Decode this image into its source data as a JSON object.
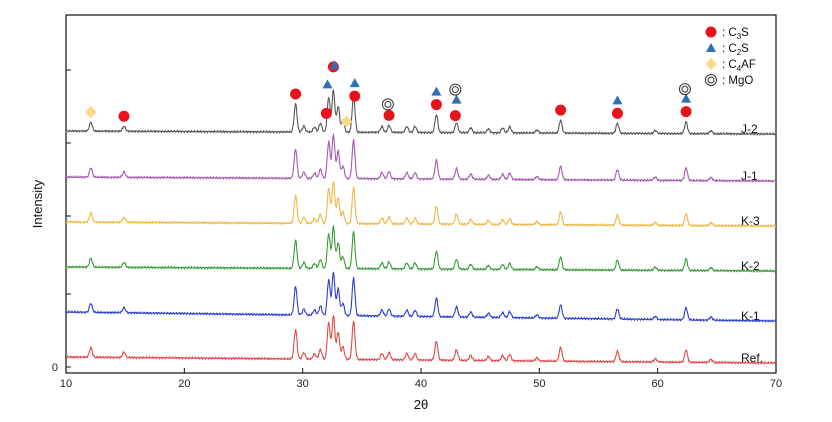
{
  "chart_data": {
    "type": "line",
    "title": "",
    "xlabel": "2θ",
    "ylabel": "Intensity",
    "xlim": [
      10,
      70
    ],
    "x_ticks": [
      "10",
      "20",
      "30",
      "40",
      "50",
      "60",
      "70"
    ],
    "y_ticks": [
      "0"
    ],
    "grid": false,
    "legend_position": "top-right",
    "legend": [
      {
        "marker": "circle",
        "color": "#e8141b",
        "prefix": ": C",
        "sub": "3",
        "suffix": "S"
      },
      {
        "marker": "triangle",
        "color": "#2f6fb5",
        "prefix": ": C",
        "sub": "2",
        "suffix": "S"
      },
      {
        "marker": "diamond",
        "color": "#fcd98a",
        "prefix": ": C",
        "sub": "4",
        "suffix": "AF"
      },
      {
        "marker": "double-circle",
        "color": "#333333",
        "prefix": ": MgO",
        "sub": "",
        "suffix": ""
      }
    ],
    "series": [
      {
        "name": "J-2",
        "color": "#555555"
      },
      {
        "name": "J-1",
        "color": "#a35aaf"
      },
      {
        "name": "K-3",
        "color": "#f2b541"
      },
      {
        "name": "K-2",
        "color": "#3a9a3a"
      },
      {
        "name": "K-1",
        "color": "#2b3fd0"
      },
      {
        "name": "Ref.",
        "color": "#e04848"
      }
    ],
    "phase_markers": [
      {
        "phase": "C4AF",
        "x": 12.1,
        "pos": 0
      },
      {
        "phase": "C3S",
        "x": 14.9,
        "pos": 0
      },
      {
        "phase": "C3S",
        "x": 29.4,
        "pos": 0
      },
      {
        "phase": "C3S",
        "x": 32.0,
        "pos": 0
      },
      {
        "phase": "C2S",
        "x": 32.1,
        "pos": 1
      },
      {
        "phase": "C3S",
        "x": 32.6,
        "pos": 1
      },
      {
        "phase": "C2S",
        "x": 32.7,
        "pos": 2
      },
      {
        "phase": "C4AF",
        "x": 33.7,
        "pos": 0
      },
      {
        "phase": "C3S",
        "x": 34.4,
        "pos": 0
      },
      {
        "phase": "C2S",
        "x": 34.4,
        "pos": 1
      },
      {
        "phase": "C3S",
        "x": 37.3,
        "pos": 0
      },
      {
        "phase": "MgO",
        "x": 37.2,
        "pos": 1
      },
      {
        "phase": "C3S",
        "x": 41.3,
        "pos": 0
      },
      {
        "phase": "C2S",
        "x": 41.3,
        "pos": 1
      },
      {
        "phase": "C3S",
        "x": 42.9,
        "pos": 0
      },
      {
        "phase": "C2S",
        "x": 43.0,
        "pos": 1
      },
      {
        "phase": "MgO",
        "x": 42.9,
        "pos": 2
      },
      {
        "phase": "C3S",
        "x": 51.8,
        "pos": 0
      },
      {
        "phase": "C3S",
        "x": 56.6,
        "pos": 0
      },
      {
        "phase": "C2S",
        "x": 56.6,
        "pos": 1
      },
      {
        "phase": "C3S",
        "x": 62.4,
        "pos": 0
      },
      {
        "phase": "C2S",
        "x": 62.4,
        "pos": 1
      },
      {
        "phase": "MgO",
        "x": 62.3,
        "pos": 2
      }
    ],
    "peaks": [
      {
        "x": 12.1,
        "h": 9
      },
      {
        "x": 14.9,
        "h": 5
      },
      {
        "x": 29.4,
        "h": 28
      },
      {
        "x": 30.1,
        "h": 6
      },
      {
        "x": 31.0,
        "h": 5
      },
      {
        "x": 31.5,
        "h": 9
      },
      {
        "x": 32.2,
        "h": 35
      },
      {
        "x": 32.6,
        "h": 42
      },
      {
        "x": 33.0,
        "h": 26
      },
      {
        "x": 33.4,
        "h": 12
      },
      {
        "x": 34.3,
        "h": 37
      },
      {
        "x": 36.7,
        "h": 6
      },
      {
        "x": 37.3,
        "h": 7
      },
      {
        "x": 38.8,
        "h": 6
      },
      {
        "x": 39.5,
        "h": 6
      },
      {
        "x": 41.3,
        "h": 18
      },
      {
        "x": 43.0,
        "h": 10
      },
      {
        "x": 44.2,
        "h": 5
      },
      {
        "x": 45.7,
        "h": 4
      },
      {
        "x": 46.9,
        "h": 5
      },
      {
        "x": 47.5,
        "h": 6
      },
      {
        "x": 49.8,
        "h": 3
      },
      {
        "x": 51.8,
        "h": 13
      },
      {
        "x": 56.6,
        "h": 10
      },
      {
        "x": 59.8,
        "h": 3
      },
      {
        "x": 62.4,
        "h": 12
      },
      {
        "x": 64.5,
        "h": 3
      }
    ]
  }
}
